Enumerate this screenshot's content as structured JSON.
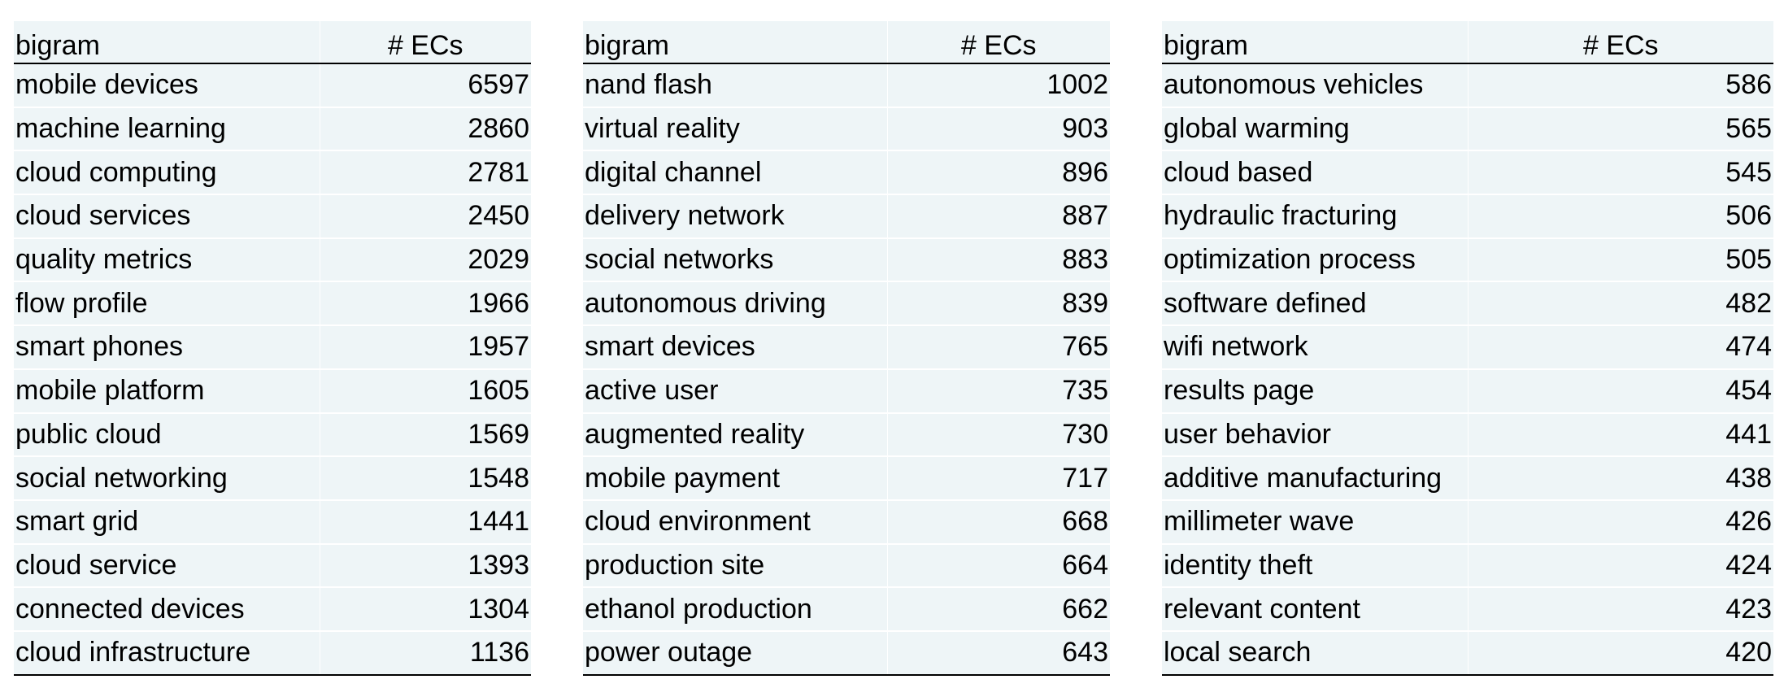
{
  "tables": [
    {
      "header": {
        "bigram": "bigram",
        "count": "# ECs"
      },
      "rows": [
        {
          "bigram": "mobile devices",
          "count": "6597"
        },
        {
          "bigram": "machine learning",
          "count": "2860"
        },
        {
          "bigram": "cloud computing",
          "count": "2781"
        },
        {
          "bigram": "cloud services",
          "count": "2450"
        },
        {
          "bigram": "quality metrics",
          "count": "2029"
        },
        {
          "bigram": "flow profile",
          "count": "1966"
        },
        {
          "bigram": "smart phones",
          "count": "1957"
        },
        {
          "bigram": "mobile platform",
          "count": "1605"
        },
        {
          "bigram": "public cloud",
          "count": "1569"
        },
        {
          "bigram": "social networking",
          "count": "1548"
        },
        {
          "bigram": "smart grid",
          "count": "1441"
        },
        {
          "bigram": "cloud service",
          "count": "1393"
        },
        {
          "bigram": "connected devices",
          "count": "1304"
        },
        {
          "bigram": "cloud infrastructure",
          "count": "1136"
        }
      ]
    },
    {
      "header": {
        "bigram": "bigram",
        "count": "# ECs"
      },
      "rows": [
        {
          "bigram": "nand flash",
          "count": "1002"
        },
        {
          "bigram": "virtual reality",
          "count": "903"
        },
        {
          "bigram": "digital channel",
          "count": "896"
        },
        {
          "bigram": "delivery network",
          "count": "887"
        },
        {
          "bigram": "social networks",
          "count": "883"
        },
        {
          "bigram": "autonomous driving",
          "count": "839"
        },
        {
          "bigram": "smart devices",
          "count": "765"
        },
        {
          "bigram": "active user",
          "count": "735"
        },
        {
          "bigram": "augmented reality",
          "count": "730"
        },
        {
          "bigram": "mobile payment",
          "count": "717"
        },
        {
          "bigram": "cloud environment",
          "count": "668"
        },
        {
          "bigram": "production site",
          "count": "664"
        },
        {
          "bigram": "ethanol production",
          "count": "662"
        },
        {
          "bigram": "power outage",
          "count": "643"
        }
      ]
    },
    {
      "header": {
        "bigram": "bigram",
        "count": "# ECs"
      },
      "rows": [
        {
          "bigram": "autonomous vehicles",
          "count": "586"
        },
        {
          "bigram": "global warming",
          "count": "565"
        },
        {
          "bigram": "cloud based",
          "count": "545"
        },
        {
          "bigram": "hydraulic fracturing",
          "count": "506"
        },
        {
          "bigram": "optimization process",
          "count": "505"
        },
        {
          "bigram": "software defined",
          "count": "482"
        },
        {
          "bigram": "wifi network",
          "count": "474"
        },
        {
          "bigram": "results page",
          "count": "454"
        },
        {
          "bigram": "user behavior",
          "count": "441"
        },
        {
          "bigram": "additive manufacturing",
          "count": "438"
        },
        {
          "bigram": "millimeter wave",
          "count": "426"
        },
        {
          "bigram": "identity theft",
          "count": "424"
        },
        {
          "bigram": "relevant content",
          "count": "423"
        },
        {
          "bigram": "local search",
          "count": "420"
        }
      ]
    }
  ]
}
